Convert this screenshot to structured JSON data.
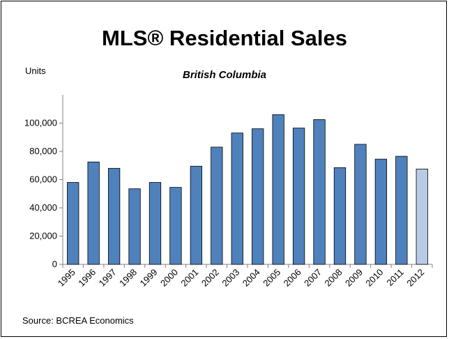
{
  "chart_data": {
    "type": "bar",
    "title": "MLS® Residential Sales",
    "subtitle": "British Columbia",
    "ylabel": "Units",
    "xlabel": "",
    "categories": [
      "1995",
      "1996",
      "1997",
      "1998",
      "1999",
      "2000",
      "2001",
      "2002",
      "2003",
      "2004",
      "2005",
      "2006",
      "2007",
      "2008",
      "2009",
      "2010",
      "2011",
      "2012"
    ],
    "values": [
      58000,
      72500,
      68000,
      53500,
      58000,
      54500,
      69500,
      83000,
      93000,
      96000,
      106000,
      96500,
      102500,
      68500,
      85000,
      74500,
      76500,
      67500
    ],
    "ylim": [
      0,
      120000
    ],
    "yticks": [
      0,
      20000,
      40000,
      60000,
      80000,
      100000
    ],
    "ytick_labels": [
      "0",
      "20,000",
      "40,000",
      "60,000",
      "80,000",
      "100,000"
    ],
    "grid": false,
    "legend": "none",
    "bar_color": "#4f81bd",
    "highlight_bar_color": "#b9cbe4",
    "highlight_index": 17,
    "source": "Source: BCREA Economics"
  }
}
